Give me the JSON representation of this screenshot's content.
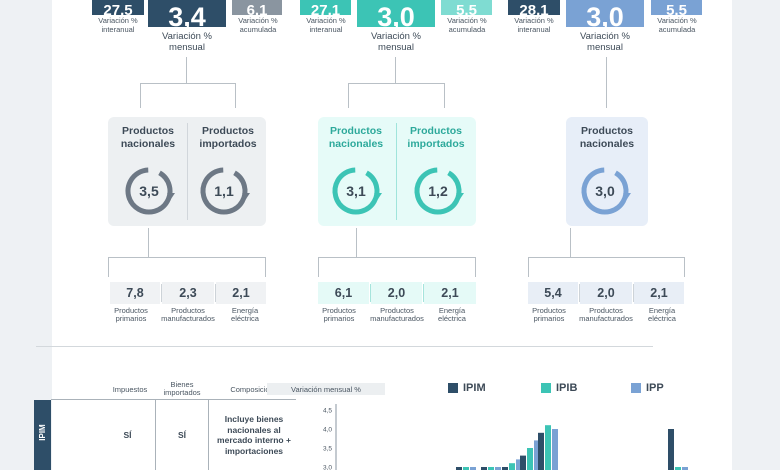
{
  "indices": [
    {
      "id": "IPIM",
      "color": "#2e4e68",
      "interanual": "27,5",
      "mensual": "3,4",
      "acumulada": "6,1",
      "label_interanual": "Variación % interanual",
      "label_mensual": "Variación % mensual",
      "label_acumulada": "Variación % acumulada",
      "ring_color": "#6d7885",
      "products": [
        {
          "label": "Productos nacionales",
          "value": "3,5"
        },
        {
          "label": "Productos importados",
          "value": "1,1"
        }
      ],
      "breakdown": [
        {
          "value": "7,8",
          "label": "Productos primarios"
        },
        {
          "value": "2,3",
          "label": "Productos manufacturados"
        },
        {
          "value": "2,1",
          "label": "Energía eléctrica"
        }
      ]
    },
    {
      "id": "IPIB",
      "color": "#3cc4b5",
      "interanual": "27,1",
      "mensual": "3,0",
      "acumulada": "5,5",
      "label_interanual": "Variación % interanual",
      "label_mensual": "Variación % mensual",
      "label_acumulada": "Variación % acumulada",
      "ring_color": "#3cc4b5",
      "products": [
        {
          "label": "Productos nacionales",
          "value": "3,1"
        },
        {
          "label": "Productos importados",
          "value": "1,2"
        }
      ],
      "breakdown": [
        {
          "value": "6,1",
          "label": "Productos primarios"
        },
        {
          "value": "2,0",
          "label": "Productos manufacturados"
        },
        {
          "value": "2,1",
          "label": "Energía eléctrica"
        }
      ]
    },
    {
      "id": "IPP",
      "color": "#7aa2d4",
      "interanual": "28,1",
      "mensual": "3,0",
      "acumulada": "5,5",
      "label_interanual": "Variación % interanual",
      "label_mensual": "Variación % mensual",
      "label_acumulada": "Variación % acumulada",
      "ring_color": "#7aa2d4",
      "products": [
        {
          "label": "Productos nacionales",
          "value": "3,0"
        }
      ],
      "breakdown": [
        {
          "value": "5,4",
          "label": "Productos primarios"
        },
        {
          "value": "2,0",
          "label": "Productos manufacturados"
        },
        {
          "value": "2,1",
          "label": "Energía eléctrica"
        }
      ]
    }
  ],
  "table": {
    "headers": [
      "Impuestos",
      "Bienes importados",
      "Composición"
    ],
    "row_label": "IPIM",
    "row": [
      "SÍ",
      "SÍ",
      "Incluye bienes nacionales al mercado interno + importaciones"
    ]
  },
  "chart_data": {
    "type": "bar",
    "title": "Variación mensual %",
    "yticks": [
      "4,5",
      "4,0",
      "3,5",
      "3,0"
    ],
    "ylim": [
      2.8,
      4.7
    ],
    "series": [
      {
        "name": "IPIM",
        "color": "#2e4e68"
      },
      {
        "name": "IPIB",
        "color": "#3cc4b5"
      },
      {
        "name": "IPP",
        "color": "#7aa2d4"
      }
    ],
    "groups": [
      {
        "IPIM": 3.0,
        "IPIB": 3.0,
        "IPP": 3.0
      },
      {
        "IPIM": 3.0,
        "IPIB": 3.0,
        "IPP": 3.0
      },
      {
        "IPIM": 3.0,
        "IPIB": 3.1,
        "IPP": 3.2
      },
      {
        "IPIM": 3.3,
        "IPIB": 3.5,
        "IPP": 3.7
      },
      {
        "IPIM": 3.9,
        "IPIB": 4.1,
        "IPP": 4.0
      },
      {
        "IPIM": 4.0,
        "IPIB": 3.0,
        "IPP": 3.0
      }
    ]
  }
}
